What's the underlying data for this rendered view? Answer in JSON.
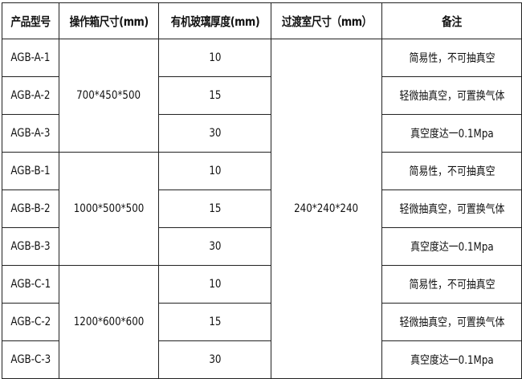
{
  "headers": [
    "产品型号",
    "操作箱尺寸(mm)",
    "有机玻璃厚度(mm)",
    "过渡室尺寸（mm）",
    "备注"
  ],
  "transition_chamber_size": "240*240*240",
  "groups": [
    {
      "box_size": "700*450*500",
      "rows": [
        {
          "model": "AGB-A-1",
          "thickness": "10",
          "note": "简易性，不可抽真空"
        },
        {
          "model": "AGB-A-2",
          "thickness": "15",
          "note": "轻微抽真空，可置换气体"
        },
        {
          "model": "AGB-A-3",
          "thickness": "30",
          "note": "真空度达一0.1Mpa"
        }
      ]
    },
    {
      "box_size": "1000*500*500",
      "rows": [
        {
          "model": "AGB-B-1",
          "thickness": "10",
          "note": "简易性，不可抽真空"
        },
        {
          "model": "AGB-B-2",
          "thickness": "15",
          "note": "轻微抽真空，可置换气体"
        },
        {
          "model": "AGB-B-3",
          "thickness": "30",
          "note": "真空度达一0.1Mpa"
        }
      ]
    },
    {
      "box_size": "1200*600*600",
      "rows": [
        {
          "model": "AGB-C-1",
          "thickness": "10",
          "note": "简易性，不可抽真空"
        },
        {
          "model": "AGB-C-2",
          "thickness": "15",
          "note": "轻微抽真空，可置换气体"
        },
        {
          "model": "AGB-C-3",
          "thickness": "30",
          "note": "真空度达一0.1Mpa"
        }
      ]
    }
  ]
}
